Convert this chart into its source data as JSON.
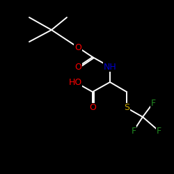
{
  "background_color": "#000000",
  "bond_color": "#ffffff",
  "atom_colors": {
    "O": "#ff0000",
    "N": "#0000cd",
    "S": "#ccaa00",
    "F": "#228b22",
    "C": "#ffffff"
  },
  "figsize": [
    2.5,
    2.5
  ],
  "dpi": 100,
  "lw": 1.4
}
